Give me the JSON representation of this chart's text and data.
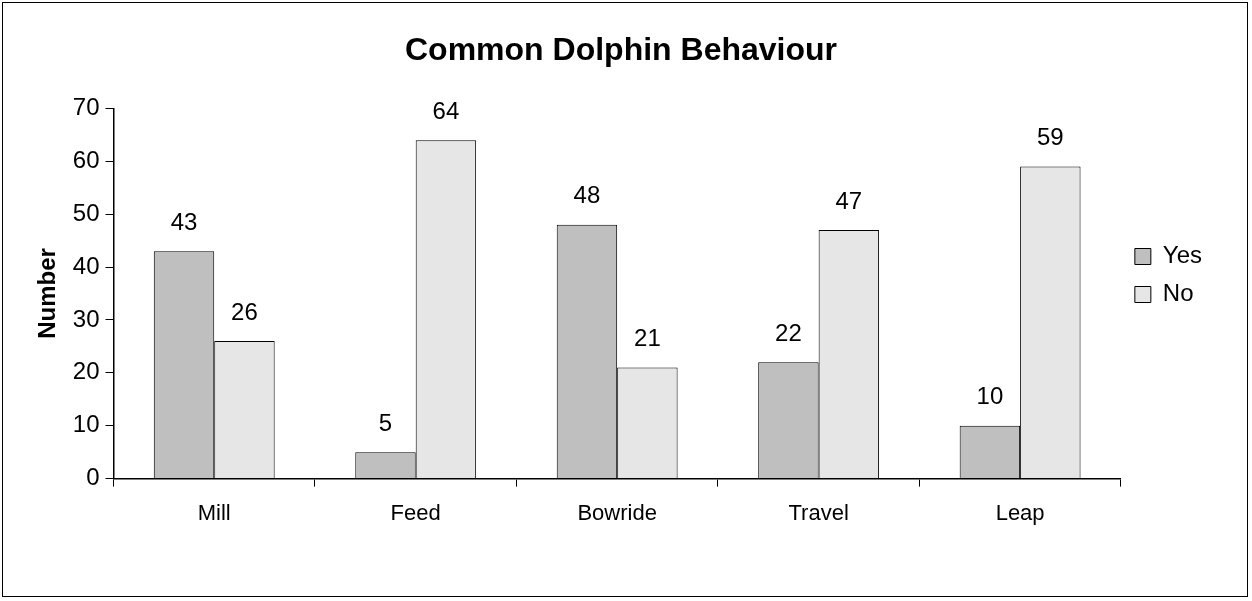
{
  "chart_data": {
    "type": "bar",
    "title": "Common Dolphin Behaviour",
    "ylabel": "Number",
    "categories": [
      "Mill",
      "Feed",
      "Bowride",
      "Travel",
      "Leap"
    ],
    "series": [
      {
        "name": "Yes",
        "color": "#bfbfbf",
        "values": [
          43,
          5,
          48,
          22,
          10
        ]
      },
      {
        "name": "No",
        "color": "#e6e6e6",
        "values": [
          26,
          64,
          21,
          47,
          59
        ]
      }
    ],
    "ylim": [
      0,
      70
    ],
    "yticks": [
      0,
      10,
      20,
      30,
      40,
      50,
      60,
      70
    ],
    "grid": false,
    "legend": "right",
    "data_labels": true
  }
}
